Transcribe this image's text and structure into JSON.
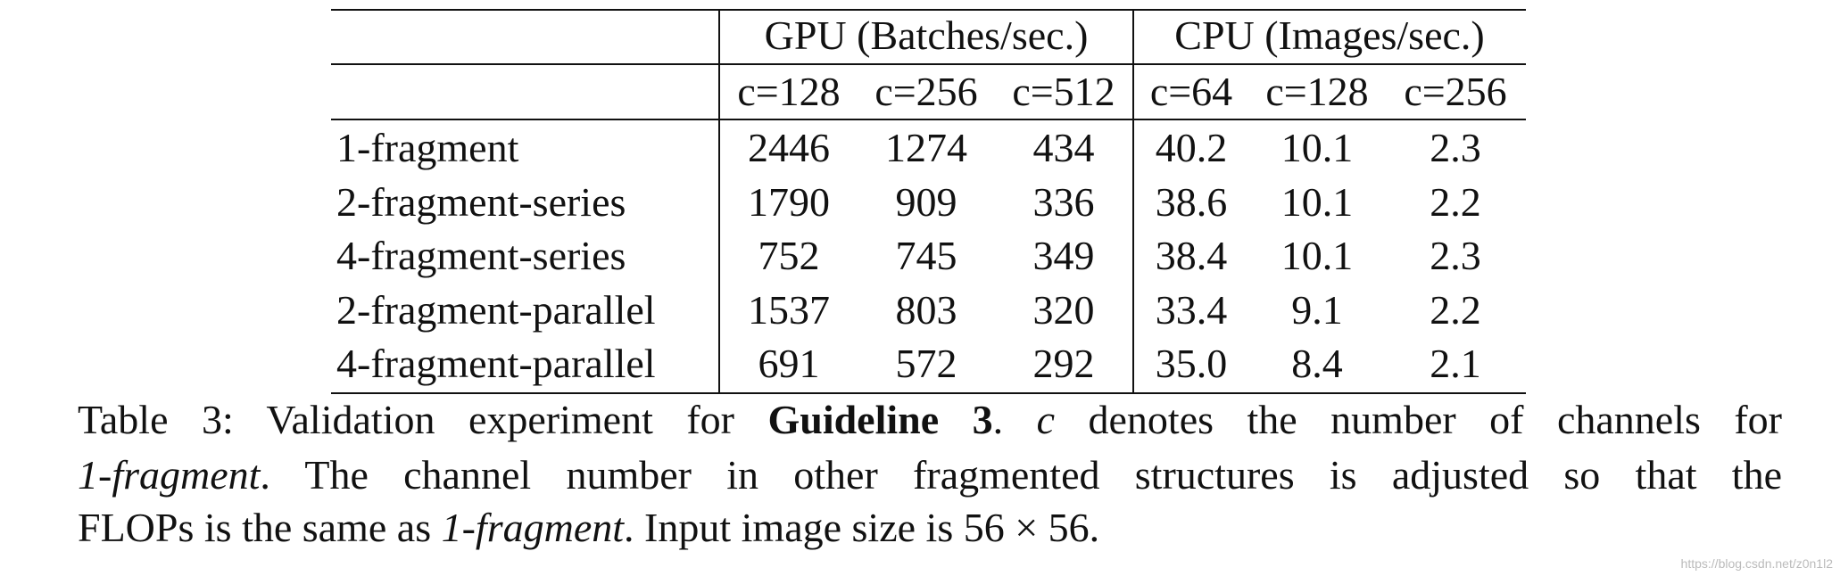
{
  "table": {
    "header_groups": [
      "GPU (Batches/sec.)",
      "CPU (Images/sec.)"
    ],
    "subheaders": [
      "c=128",
      "c=256",
      "c=512",
      "c=64",
      "c=128",
      "c=256"
    ],
    "rows": [
      {
        "label": "1-fragment",
        "values": [
          "2446",
          "1274",
          "434",
          "40.2",
          "10.1",
          "2.3"
        ]
      },
      {
        "label": "2-fragment-series",
        "values": [
          "1790",
          "909",
          "336",
          "38.6",
          "10.1",
          "2.2"
        ]
      },
      {
        "label": "4-fragment-series",
        "values": [
          "752",
          "745",
          "349",
          "38.4",
          "10.1",
          "2.3"
        ]
      },
      {
        "label": "2-fragment-parallel",
        "values": [
          "1537",
          "803",
          "320",
          "33.4",
          "9.1",
          "2.2"
        ]
      },
      {
        "label": "4-fragment-parallel",
        "values": [
          "691",
          "572",
          "292",
          "35.0",
          "8.4",
          "2.1"
        ]
      }
    ]
  },
  "caption": {
    "lines": [
      [
        "Table 3: Validation experiment for ",
        "Guideline 3",
        ". ",
        "c",
        " denotes the number of channels for"
      ],
      [
        "1-fragment",
        ". The channel number in other fragmented structures is adjusted so that the"
      ],
      [
        "FLOPs is the same as ",
        "1-fragment",
        ". Input image size is 56 × 56."
      ]
    ]
  },
  "watermark": "https://blog.csdn.net/z0n1l2"
}
